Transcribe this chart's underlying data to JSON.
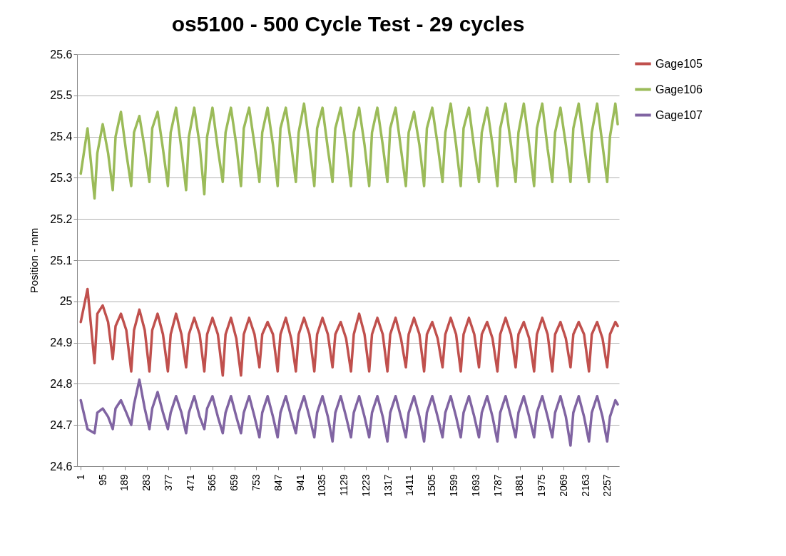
{
  "chart_data": {
    "type": "line",
    "title": "os5100 - 500 Cycle Test - 29 cycles",
    "ylabel": "Position - mm",
    "x": [
      1,
      30,
      60,
      72,
      95,
      118,
      138,
      150,
      173,
      196,
      217,
      229,
      252,
      275,
      295,
      307,
      330,
      353,
      374,
      386,
      409,
      432,
      452,
      464,
      487,
      510,
      530,
      542,
      565,
      588,
      609,
      621,
      644,
      667,
      687,
      699,
      722,
      745,
      766,
      778,
      801,
      824,
      844,
      856,
      879,
      902,
      922,
      934,
      957,
      980,
      1001,
      1013,
      1036,
      1059,
      1079,
      1091,
      1114,
      1137,
      1158,
      1170,
      1193,
      1216,
      1236,
      1248,
      1271,
      1294,
      1314,
      1326,
      1349,
      1372,
      1393,
      1405,
      1428,
      1451,
      1471,
      1483,
      1506,
      1529,
      1550,
      1562,
      1585,
      1608,
      1628,
      1640,
      1663,
      1686,
      1706,
      1718,
      1741,
      1764,
      1785,
      1797,
      1820,
      1843,
      1863,
      1875,
      1898,
      1921,
      1942,
      1954,
      1977,
      2000,
      2020,
      2032,
      2055,
      2078,
      2098,
      2110,
      2133,
      2156,
      2177,
      2189,
      2212,
      2235,
      2255,
      2267,
      2290,
      2300
    ],
    "xlim": [
      -15,
      2306
    ],
    "xticks": [
      1,
      95,
      189,
      283,
      377,
      471,
      565,
      659,
      753,
      847,
      941,
      1035,
      1129,
      1223,
      1317,
      1411,
      1505,
      1599,
      1693,
      1787,
      1881,
      1975,
      2069,
      2163,
      2257
    ],
    "ylim": [
      24.6,
      25.6
    ],
    "yticks": [
      24.6,
      24.7,
      24.8,
      24.9,
      25,
      25.1,
      25.2,
      25.3,
      25.4,
      25.5,
      25.6
    ],
    "grid": "y",
    "legend": "right",
    "series": [
      {
        "name": "Gage105",
        "color": "#c0504d",
        "values": [
          24.95,
          25.03,
          24.85,
          24.97,
          24.99,
          24.95,
          24.86,
          24.94,
          24.97,
          24.93,
          24.83,
          24.93,
          24.98,
          24.93,
          24.83,
          24.93,
          24.97,
          24.92,
          24.83,
          24.92,
          24.97,
          24.92,
          24.84,
          24.92,
          24.96,
          24.92,
          24.83,
          24.92,
          24.96,
          24.92,
          24.82,
          24.92,
          24.96,
          24.91,
          24.82,
          24.92,
          24.96,
          24.92,
          24.84,
          24.92,
          24.95,
          24.92,
          24.83,
          24.92,
          24.96,
          24.91,
          24.83,
          24.92,
          24.96,
          24.92,
          24.83,
          24.92,
          24.96,
          24.92,
          24.84,
          24.92,
          24.95,
          24.91,
          24.83,
          24.92,
          24.97,
          24.92,
          24.83,
          24.92,
          24.96,
          24.92,
          24.83,
          24.92,
          24.96,
          24.91,
          24.84,
          24.92,
          24.96,
          24.92,
          24.83,
          24.92,
          24.95,
          24.91,
          24.84,
          24.92,
          24.96,
          24.92,
          24.83,
          24.92,
          24.96,
          24.92,
          24.84,
          24.92,
          24.95,
          24.91,
          24.83,
          24.92,
          24.96,
          24.92,
          24.84,
          24.92,
          24.95,
          24.91,
          24.83,
          24.92,
          24.96,
          24.92,
          24.83,
          24.92,
          24.95,
          24.91,
          24.84,
          24.92,
          24.95,
          24.92,
          24.83,
          24.92,
          24.95,
          24.91,
          24.84,
          24.92,
          24.95,
          24.94
        ]
      },
      {
        "name": "Gage106",
        "color": "#9bbb59",
        "values": [
          25.31,
          25.42,
          25.25,
          25.36,
          25.43,
          25.36,
          25.27,
          25.4,
          25.46,
          25.36,
          25.28,
          25.41,
          25.45,
          25.37,
          25.29,
          25.42,
          25.46,
          25.37,
          25.28,
          25.41,
          25.47,
          25.37,
          25.27,
          25.4,
          25.47,
          25.38,
          25.26,
          25.4,
          25.47,
          25.37,
          25.29,
          25.41,
          25.47,
          25.38,
          25.28,
          25.42,
          25.47,
          25.38,
          25.29,
          25.41,
          25.47,
          25.38,
          25.28,
          25.42,
          25.47,
          25.38,
          25.29,
          25.41,
          25.48,
          25.38,
          25.28,
          25.42,
          25.47,
          25.37,
          25.29,
          25.42,
          25.47,
          25.38,
          25.28,
          25.41,
          25.47,
          25.38,
          25.28,
          25.41,
          25.47,
          25.38,
          25.29,
          25.42,
          25.47,
          25.37,
          25.28,
          25.41,
          25.46,
          25.38,
          25.28,
          25.42,
          25.47,
          25.38,
          25.29,
          25.41,
          25.48,
          25.38,
          25.28,
          25.42,
          25.47,
          25.37,
          25.29,
          25.41,
          25.47,
          25.38,
          25.28,
          25.42,
          25.48,
          25.38,
          25.29,
          25.41,
          25.48,
          25.38,
          25.28,
          25.42,
          25.48,
          25.37,
          25.29,
          25.41,
          25.47,
          25.38,
          25.29,
          25.42,
          25.48,
          25.38,
          25.29,
          25.41,
          25.48,
          25.38,
          25.29,
          25.4,
          25.48,
          25.43
        ]
      },
      {
        "name": "Gage107",
        "color": "#8064a2",
        "values": [
          24.76,
          24.69,
          24.68,
          24.73,
          24.74,
          24.72,
          24.69,
          24.74,
          24.76,
          24.73,
          24.7,
          24.75,
          24.81,
          24.74,
          24.69,
          24.74,
          24.78,
          24.73,
          24.69,
          24.73,
          24.77,
          24.73,
          24.68,
          24.73,
          24.77,
          24.72,
          24.69,
          24.74,
          24.77,
          24.72,
          24.68,
          24.73,
          24.77,
          24.72,
          24.68,
          24.73,
          24.77,
          24.72,
          24.67,
          24.73,
          24.77,
          24.72,
          24.67,
          24.73,
          24.77,
          24.72,
          24.68,
          24.73,
          24.77,
          24.72,
          24.67,
          24.73,
          24.77,
          24.72,
          24.66,
          24.73,
          24.77,
          24.72,
          24.67,
          24.73,
          24.77,
          24.72,
          24.67,
          24.73,
          24.77,
          24.72,
          24.66,
          24.73,
          24.77,
          24.72,
          24.67,
          24.73,
          24.77,
          24.72,
          24.66,
          24.73,
          24.77,
          24.72,
          24.67,
          24.73,
          24.77,
          24.72,
          24.67,
          24.73,
          24.77,
          24.72,
          24.67,
          24.73,
          24.77,
          24.72,
          24.66,
          24.73,
          24.77,
          24.72,
          24.67,
          24.73,
          24.77,
          24.72,
          24.67,
          24.73,
          24.77,
          24.72,
          24.67,
          24.73,
          24.77,
          24.72,
          24.65,
          24.73,
          24.77,
          24.72,
          24.66,
          24.73,
          24.77,
          24.72,
          24.66,
          24.72,
          24.76,
          24.75
        ]
      }
    ]
  }
}
